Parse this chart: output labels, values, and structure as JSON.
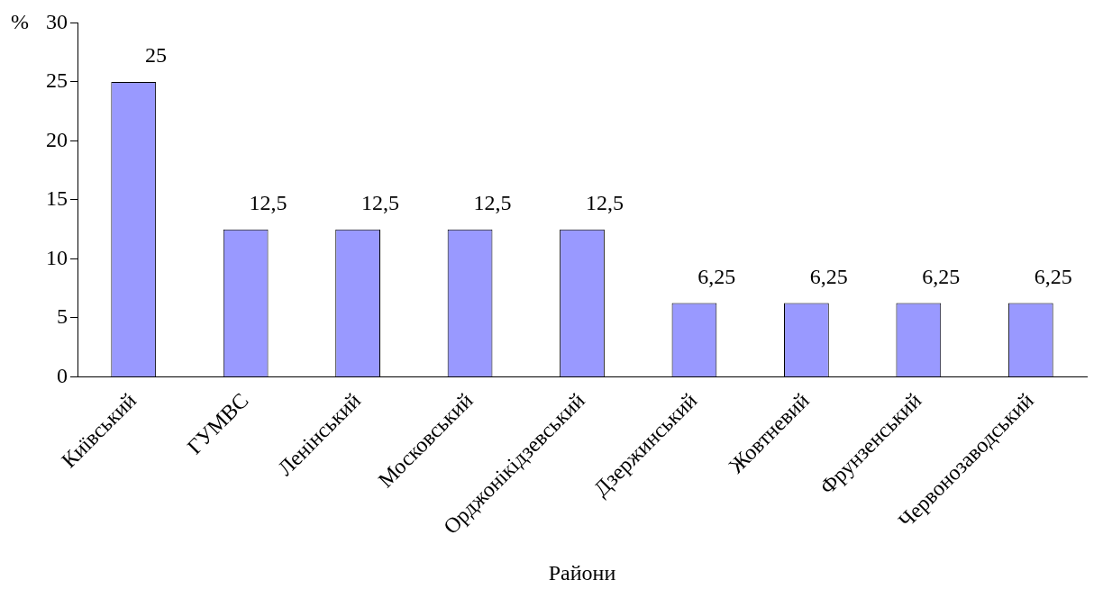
{
  "chart_data": {
    "type": "bar",
    "xlabel": "Райони",
    "ylabel": "%",
    "categories": [
      "Київський",
      "ГУМВС",
      "Ленінський",
      "Московський",
      "Орджонікідзевський",
      "Дзержинський",
      "Жовтневий",
      "Фрунзенський",
      "Червонозаводський"
    ],
    "values": [
      25,
      12.5,
      12.5,
      12.5,
      12.5,
      6.25,
      6.25,
      6.25,
      6.25
    ],
    "value_labels": [
      "25",
      "12,5",
      "12,5",
      "12,5",
      "12,5",
      "6,25",
      "6,25",
      "6,25",
      "6,25"
    ],
    "color": "#9999ff",
    "ylim": [
      0,
      30
    ],
    "yticks": [
      0,
      5,
      10,
      15,
      20,
      25,
      30
    ],
    "grid": false,
    "legend": false
  }
}
